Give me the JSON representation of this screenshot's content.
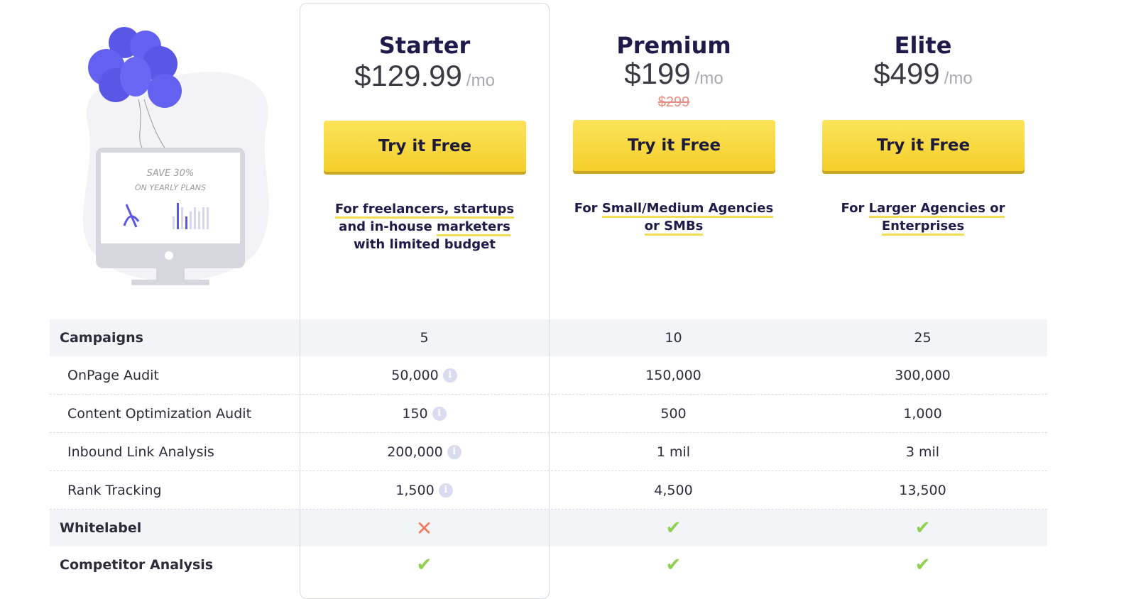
{
  "illustration": {
    "text_line1": "SAVE 30%",
    "text_line2": "ON YEARLY PLANS"
  },
  "plans": [
    {
      "name": "Starter",
      "price": "$129.99",
      "period": "/mo",
      "old_price": "",
      "button": "Try it Free",
      "desc_parts": [
        "For freelancers, startups",
        "and in-house ",
        "marketers",
        "with limited budget"
      ]
    },
    {
      "name": "Premium",
      "price": "$199",
      "period": "/mo",
      "old_price": "$299",
      "button": "Try it Free",
      "desc_parts": [
        "For ",
        "Small/Medium Agencies",
        "or SMBs"
      ]
    },
    {
      "name": "Elite",
      "price": "$499",
      "period": "/mo",
      "old_price": "",
      "button": "Try it Free",
      "desc_parts": [
        "For ",
        "Larger Agencies or",
        "Enterprises"
      ]
    }
  ],
  "rows": [
    {
      "label": "Campaigns",
      "group": true,
      "values": [
        "5",
        "10",
        "25"
      ]
    },
    {
      "label": "OnPage Audit",
      "values": [
        "50,000",
        "150,000",
        "300,000"
      ],
      "info": true
    },
    {
      "label": "Content Optimization Audit",
      "values": [
        "150",
        "500",
        "1,000"
      ],
      "info": true
    },
    {
      "label": "Inbound Link Analysis",
      "values": [
        "200,000",
        "1 mil",
        "3 mil"
      ],
      "info": true
    },
    {
      "label": "Rank Tracking",
      "values": [
        "1,500",
        "4,500",
        "13,500"
      ],
      "info": true
    },
    {
      "label": "Whitelabel",
      "group": true,
      "values": [
        "cross",
        "check",
        "check"
      ]
    },
    {
      "label": "Competitor Analysis",
      "group": true,
      "white": true,
      "values": [
        "check",
        "check",
        "check"
      ]
    }
  ],
  "colors": {
    "accent_yellow": "#f4cf2a",
    "balloon": "#6461f0",
    "check": "#8fd14f",
    "cross": "#f07a5e",
    "title": "#1e1b4b"
  }
}
